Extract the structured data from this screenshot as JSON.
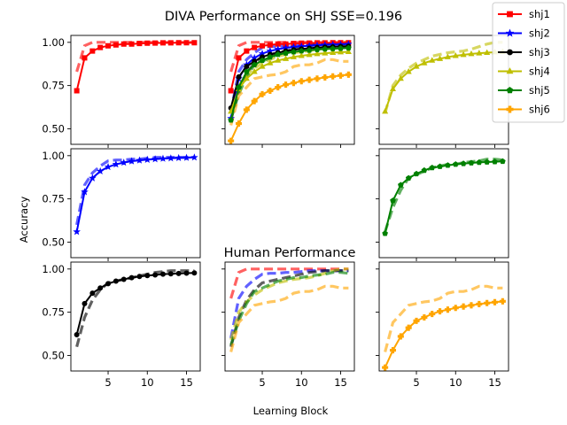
{
  "figure": {
    "title": "DIVA Performance on SHJ SSE=0.196",
    "ylabel": "Accuracy",
    "xlabel": "Learning Block"
  },
  "colors": {
    "shj1": "#ff0000",
    "shj2": "#0000ff",
    "shj3": "#000000",
    "shj4": "#bfbf00",
    "shj5": "#008000",
    "shj6": "#ffa500"
  },
  "chart_data": {
    "type": "line",
    "title": "DIVA Performance on SHJ SSE=0.196",
    "xlabel": "Learning Block",
    "ylabel": "Accuracy",
    "x": [
      1,
      2,
      3,
      4,
      5,
      6,
      7,
      8,
      9,
      10,
      11,
      12,
      13,
      14,
      15,
      16
    ],
    "xlim": [
      0.25,
      16.75
    ],
    "ylim": [
      0.41,
      1.04
    ],
    "xticks": [
      5,
      10,
      15
    ],
    "yticks": [
      0.5,
      0.75,
      1.0
    ],
    "ytick_labels": [
      "0.50",
      "0.75",
      "1.00"
    ],
    "legend": {
      "placement": "top-right",
      "entries": [
        {
          "label": "shj1",
          "color": "#ff0000",
          "marker": "square"
        },
        {
          "label": "shj2",
          "color": "#0000ff",
          "marker": "star"
        },
        {
          "label": "shj3",
          "color": "#000000",
          "marker": "circle"
        },
        {
          "label": "shj4",
          "color": "#bfbf00",
          "marker": "triangle"
        },
        {
          "label": "shj5",
          "color": "#008000",
          "marker": "pentagon"
        },
        {
          "label": "shj6",
          "color": "#ffa500",
          "marker": "plus"
        }
      ]
    },
    "model": {
      "shj1": [
        0.72,
        0.91,
        0.95,
        0.97,
        0.98,
        0.985,
        0.99,
        0.99,
        0.993,
        0.995,
        0.996,
        0.997,
        0.997,
        0.998,
        0.998,
        0.998
      ],
      "shj2": [
        0.56,
        0.79,
        0.87,
        0.91,
        0.935,
        0.95,
        0.96,
        0.968,
        0.973,
        0.977,
        0.98,
        0.983,
        0.985,
        0.987,
        0.988,
        0.99
      ],
      "shj3": [
        0.62,
        0.8,
        0.86,
        0.89,
        0.915,
        0.93,
        0.94,
        0.95,
        0.957,
        0.962,
        0.966,
        0.97,
        0.972,
        0.974,
        0.976,
        0.977
      ],
      "shj4": [
        0.6,
        0.73,
        0.79,
        0.83,
        0.86,
        0.88,
        0.895,
        0.905,
        0.915,
        0.922,
        0.928,
        0.933,
        0.937,
        0.94,
        0.943,
        0.945
      ],
      "shj5": [
        0.55,
        0.74,
        0.83,
        0.87,
        0.895,
        0.915,
        0.93,
        0.937,
        0.944,
        0.95,
        0.954,
        0.958,
        0.961,
        0.963,
        0.965,
        0.967
      ],
      "shj6": [
        0.43,
        0.53,
        0.61,
        0.66,
        0.7,
        0.72,
        0.74,
        0.755,
        0.765,
        0.775,
        0.783,
        0.79,
        0.797,
        0.803,
        0.808,
        0.813
      ]
    },
    "human": {
      "shj1": [
        0.83,
        0.98,
        1.0,
        1.0,
        1.0,
        1.0,
        1.0,
        1.0,
        1.0,
        1.0,
        1.0,
        1.0,
        1.0,
        1.0,
        1.0,
        1.0
      ],
      "shj2": [
        0.6,
        0.83,
        0.9,
        0.94,
        0.97,
        0.975,
        0.975,
        0.98,
        0.98,
        0.985,
        0.99,
        0.99,
        0.99,
        0.99,
        0.99,
        0.99
      ],
      "shj3": [
        0.55,
        0.72,
        0.82,
        0.88,
        0.92,
        0.93,
        0.94,
        0.95,
        0.96,
        0.97,
        0.98,
        0.985,
        0.99,
        0.99,
        0.99,
        0.99
      ],
      "shj4": [
        0.59,
        0.75,
        0.81,
        0.85,
        0.88,
        0.9,
        0.92,
        0.93,
        0.94,
        0.945,
        0.95,
        0.96,
        0.975,
        0.99,
        1.0,
        1.0
      ],
      "shj5": [
        0.56,
        0.7,
        0.8,
        0.87,
        0.89,
        0.91,
        0.93,
        0.94,
        0.95,
        0.95,
        0.96,
        0.965,
        0.97,
        0.98,
        0.98,
        0.975
      ],
      "shj6": [
        0.52,
        0.69,
        0.74,
        0.79,
        0.8,
        0.81,
        0.815,
        0.83,
        0.86,
        0.87,
        0.87,
        0.88,
        0.9,
        0.9,
        0.89,
        0.89
      ]
    },
    "panels": [
      {
        "row": 0,
        "col": 0,
        "series": [
          "shj1"
        ],
        "show_model": true,
        "show_human": true
      },
      {
        "row": 0,
        "col": 1,
        "series": [
          "shj1",
          "shj2",
          "shj3",
          "shj4",
          "shj5",
          "shj6"
        ],
        "show_model": true,
        "show_human": true
      },
      {
        "row": 0,
        "col": 2,
        "series": [
          "shj4"
        ],
        "show_model": true,
        "show_human": true
      },
      {
        "row": 1,
        "col": 0,
        "series": [
          "shj2"
        ],
        "show_model": true,
        "show_human": true
      },
      {
        "row": 1,
        "col": 2,
        "series": [
          "shj5"
        ],
        "show_model": true,
        "show_human": true
      },
      {
        "row": 2,
        "col": 0,
        "series": [
          "shj3"
        ],
        "show_model": true,
        "show_human": true
      },
      {
        "row": 2,
        "col": 1,
        "title": "Human Performance",
        "series": [
          "shj1",
          "shj2",
          "shj3",
          "shj4",
          "shj5",
          "shj6"
        ],
        "show_model": false,
        "show_human": true
      },
      {
        "row": 2,
        "col": 2,
        "series": [
          "shj6"
        ],
        "show_model": true,
        "show_human": true
      }
    ]
  }
}
